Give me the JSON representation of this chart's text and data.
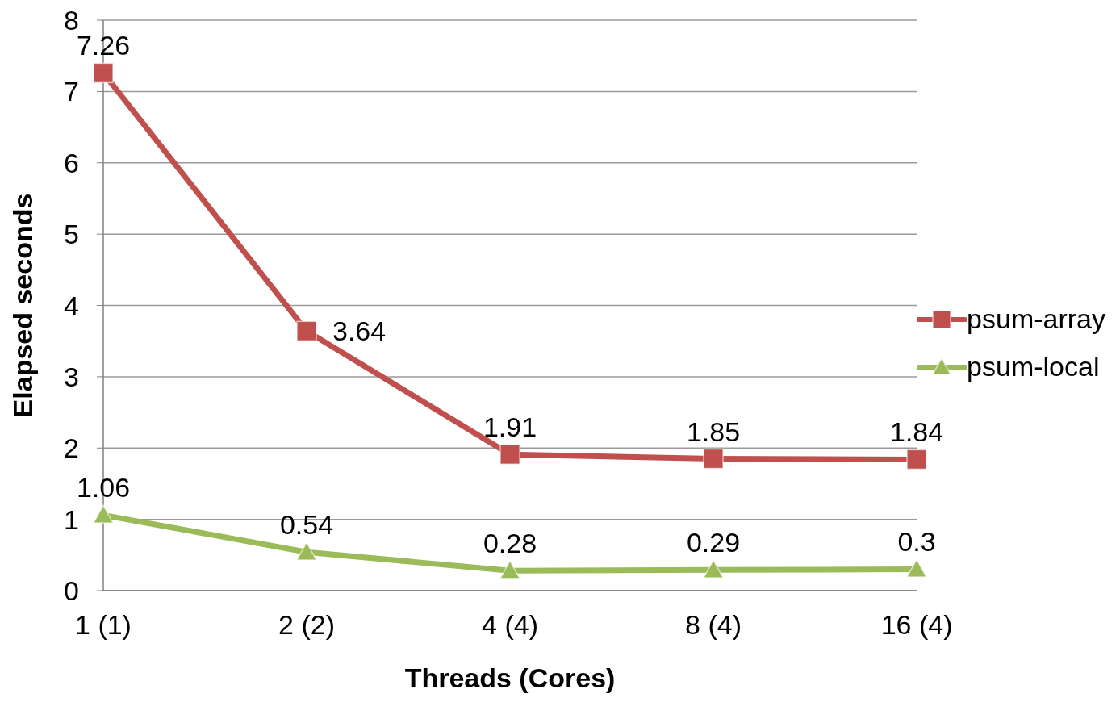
{
  "chart_data": {
    "type": "line",
    "xlabel": "Threads (Cores)",
    "ylabel": "Elapsed seconds",
    "categories": [
      "1 (1)",
      "2 (2)",
      "4 (4)",
      "8 (4)",
      "16 (4)"
    ],
    "series": [
      {
        "name": "psum-array",
        "color": "#c0504d",
        "marker": "square",
        "values": [
          7.26,
          3.64,
          1.91,
          1.85,
          1.84
        ]
      },
      {
        "name": "psum-local",
        "color": "#9bbb59",
        "marker": "triangle",
        "values": [
          1.06,
          0.54,
          0.28,
          0.29,
          0.3
        ]
      }
    ],
    "ylim": [
      0,
      8
    ],
    "yticks": [
      0,
      1,
      2,
      3,
      4,
      5,
      6,
      7,
      8
    ],
    "grid": "y",
    "legend": "right",
    "data_labels": true
  }
}
